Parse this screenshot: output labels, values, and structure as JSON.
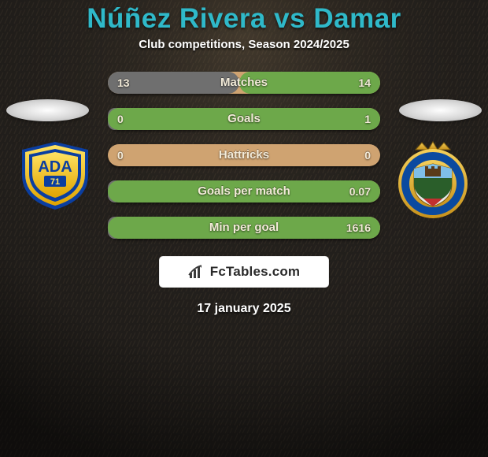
{
  "background": {
    "base_color": "#1f1b1a",
    "grass_color_dark": "#2a2622",
    "grass_color_light": "#383129",
    "vignette": "rgba(0,0,0,0.55)"
  },
  "header": {
    "title_left": "Núñez Rivera",
    "title_vs": " vs ",
    "title_right": "Damar",
    "title_color": "#2fb9c9",
    "subtitle": "Club competitions, Season 2024/2025"
  },
  "stats_style": {
    "pill_bg": "#cfa371",
    "fill_left_color": "#6f6f6f",
    "fill_right_color": "#6da84a",
    "label_color": "#f2ead8",
    "value_color": "#f2ead8",
    "pill_width": 346,
    "pill_height": 28
  },
  "stats": [
    {
      "label": "Matches",
      "left_val": "13",
      "right_val": "14",
      "left_num": 13,
      "right_num": 14
    },
    {
      "label": "Goals",
      "left_val": "0",
      "right_val": "1",
      "left_num": 0,
      "right_num": 1
    },
    {
      "label": "Hattricks",
      "left_val": "0",
      "right_val": "0",
      "left_num": 0,
      "right_num": 0
    },
    {
      "label": "Goals per match",
      "left_val": "",
      "right_val": "0.07",
      "left_num": 0,
      "right_num": 0.07
    },
    {
      "label": "Min per goal",
      "left_val": "",
      "right_val": "1616",
      "left_num": 0,
      "right_num": 1616
    }
  ],
  "brand": {
    "text": "FcTables.com",
    "box_bg": "#ffffff",
    "text_color": "#2a2a2a",
    "font_size": 17,
    "icon_color": "#3a3a3a"
  },
  "date": "17 january 2025",
  "crest_left": {
    "name": "ADA 71",
    "shield_fill": "#f1c40f",
    "shield_stroke": "#0b3ea0",
    "banner_text": "ADA",
    "banner_color": "#0b3ea0",
    "sub_text": "71"
  },
  "crest_right": {
    "name": "Fuenlabrada-style",
    "ring_fill": "#0a4aa0",
    "gold": "#e2b23a",
    "inner_top": "#7fbfe8",
    "inner_bottom": "#c23030",
    "inner_mid": "#2a5e2a"
  }
}
